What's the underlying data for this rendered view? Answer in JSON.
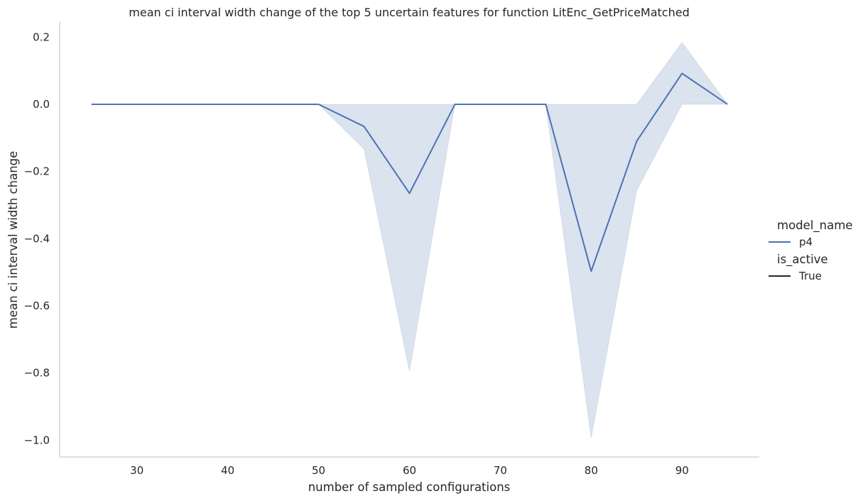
{
  "chart_data": {
    "type": "line",
    "title": "mean ci interval width change of the top 5 uncertain features for function LitEnc_GetPriceMatched",
    "xlabel": "number of sampled configurations",
    "ylabel": "mean ci interval width change",
    "xlim": [
      21.5,
      98.5
    ],
    "ylim": [
      -1.05,
      0.245
    ],
    "x_ticks": [
      30,
      40,
      50,
      60,
      70,
      80,
      90
    ],
    "y_ticks": [
      0.2,
      0.0,
      -0.2,
      -0.4,
      -0.6,
      -0.8,
      -1.0
    ],
    "x_tick_labels": [
      "30",
      "40",
      "50",
      "60",
      "70",
      "80",
      "90"
    ],
    "y_tick_labels": [
      "0.2",
      "0.0",
      "−0.2",
      "−0.4",
      "−0.6",
      "−0.8",
      "−1.0"
    ],
    "grid": false,
    "series": [
      {
        "name": "p4",
        "color": "#4c72b0",
        "x": [
          25,
          30,
          35,
          40,
          45,
          50,
          55,
          60,
          65,
          70,
          75,
          80,
          85,
          90,
          95
        ],
        "values": [
          0,
          0,
          0,
          0,
          0,
          0,
          -0.066,
          -0.265,
          0,
          0,
          0,
          -0.497,
          -0.11,
          0.092,
          0
        ],
        "ci_lower": [
          0,
          0,
          0,
          0,
          0,
          0,
          -0.133,
          -0.795,
          0,
          0,
          0,
          -0.993,
          -0.257,
          0,
          0
        ],
        "ci_upper": [
          0,
          0,
          0,
          0,
          0,
          0,
          0,
          0,
          0,
          0,
          0,
          0,
          0,
          0.184,
          0
        ]
      }
    ],
    "legend": {
      "placement": "right",
      "hue_title": "model_name",
      "hue_entries": [
        {
          "label": "p4",
          "color": "#4c72b0"
        }
      ],
      "style_title": "is_active",
      "style_entries": [
        {
          "label": "True",
          "color": "#262626"
        }
      ]
    }
  }
}
